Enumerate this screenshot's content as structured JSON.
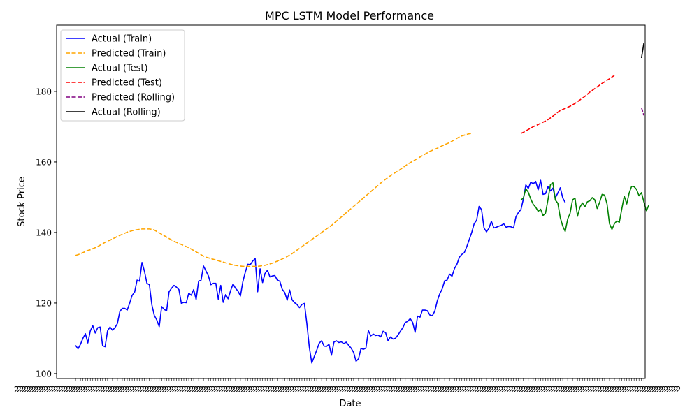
{
  "chart_data": {
    "type": "line",
    "title": "MPC LSTM Model Performance",
    "xlabel": "Date",
    "ylabel": "Stock Price",
    "x_tick_label_text": "2",
    "xlim": [
      -7.7,
      231.5
    ],
    "ylim": [
      98.6,
      198.8
    ],
    "yticks": [
      100,
      120,
      140,
      160,
      180
    ],
    "grid": false,
    "legend_position": "top-left",
    "series": [
      {
        "name": "Actual (Train)",
        "color": "#0000ff",
        "style": "solid",
        "x_start": 0,
        "values": [
          108,
          107,
          108.3,
          110,
          111.3,
          108.7,
          112.1,
          113.6,
          111.5,
          113,
          113.2,
          107.9,
          107.6,
          112.1,
          113.2,
          112.3,
          113,
          114.2,
          117.6,
          118.5,
          118.5,
          118,
          120,
          122.2,
          123.1,
          126.5,
          126.2,
          131.5,
          129,
          125.6,
          125.2,
          119.5,
          116.5,
          115.2,
          113.3,
          119,
          118.2,
          117.8,
          123.2,
          124.2,
          125,
          124.5,
          123.8,
          119.9,
          120.2,
          120.1,
          122.8,
          122.2,
          123.8,
          121,
          126.2,
          126.5,
          130.5,
          129.1,
          127.7,
          125.2,
          125.6,
          125.6,
          121.1,
          125,
          120.2,
          122.4,
          121.2,
          123.5,
          125.4,
          124.2,
          123.4,
          122,
          126.1,
          128.8,
          131,
          130.9,
          131.9,
          132.6,
          123.2,
          129.7,
          125.8,
          128.4,
          129.3,
          127.4,
          127.7,
          127.8,
          126.5,
          126.2,
          123.9,
          123,
          120.8,
          123.7,
          120.9,
          120.1,
          119.6,
          118.7,
          119.6,
          119.9,
          114.2,
          107.5,
          103,
          104.8,
          106.6,
          108.6,
          109.3,
          107.8,
          107.7,
          108.3,
          105.2,
          108.9,
          109.3,
          108.8,
          109,
          108.5,
          108.9,
          108,
          107.2,
          106,
          103.5,
          104.2,
          107.1,
          106.9,
          107.2,
          112.2,
          110.7,
          111.2,
          110.8,
          110.9,
          110.4,
          112,
          111.6,
          109.3,
          110.4,
          109.8,
          110,
          110.9,
          112,
          113,
          114.5,
          114.8,
          115.6,
          114.5,
          111.7,
          116.3,
          116,
          118,
          118,
          117.8,
          116.6,
          116.4,
          117.7,
          120.6,
          122.6,
          124,
          126.3,
          126.5,
          128.2,
          127.6,
          129.8,
          131,
          133,
          133.8,
          134.3,
          136,
          138,
          140,
          142.5,
          143.5,
          147.4,
          146.5,
          141.3,
          140.2,
          141.2,
          143.2,
          141.3,
          141.5,
          141.8,
          142,
          142.5,
          141.5,
          141.7,
          141.6,
          141.3,
          144.5,
          145.7,
          146.5,
          149.5,
          153.5,
          152.5,
          154.3,
          153.8,
          154.5,
          152.1,
          154.8,
          150.8,
          151,
          153,
          151.8,
          152.6,
          149.8,
          151.2,
          152.7,
          149.8,
          148.5
        ]
      },
      {
        "name": "Predicted (Train)",
        "color": "#ffa500",
        "style": "dashed",
        "x_start": 0,
        "values": [
          133.5,
          133.7,
          134,
          134.3,
          134.6,
          134.9,
          135.1,
          135.4,
          135.7,
          136,
          136.4,
          136.8,
          137.2,
          137.6,
          137.8,
          138.2,
          138.5,
          138.9,
          139.2,
          139.5,
          139.8,
          140.1,
          140.3,
          140.5,
          140.7,
          140.8,
          140.9,
          141,
          141,
          141,
          141,
          140.9,
          140.7,
          140.3,
          139.9,
          139.5,
          139.1,
          138.7,
          138.3,
          137.9,
          137.5,
          137.2,
          136.9,
          136.6,
          136.3,
          136,
          135.7,
          135.3,
          134.9,
          134.5,
          134.1,
          133.7,
          133.3,
          133,
          132.8,
          132.6,
          132.4,
          132.2,
          132,
          131.8,
          131.6,
          131.4,
          131.2,
          131,
          130.8,
          130.7,
          130.6,
          130.5,
          130.4,
          130.4,
          130.4,
          130.4,
          130.4,
          130.4,
          130.4,
          130.5,
          130.6,
          130.7,
          130.9,
          131.1,
          131.3,
          131.6,
          131.9,
          132.2,
          132.5,
          132.8,
          133.2,
          133.6,
          134,
          134.5,
          135,
          135.5,
          136,
          136.5,
          137,
          137.5,
          138,
          138.5,
          139,
          139.5,
          140,
          140.5,
          141,
          141.5,
          142,
          142.6,
          143.2,
          143.8,
          144.4,
          145,
          145.6,
          146.2,
          146.8,
          147.4,
          148,
          148.6,
          149.2,
          149.8,
          150.4,
          151,
          151.6,
          152.2,
          152.8,
          153.4,
          154,
          154.6,
          155.1,
          155.6,
          156.1,
          156.6,
          157,
          157.4,
          157.9,
          158.4,
          158.9,
          159.4,
          159.8,
          160.2,
          160.6,
          161,
          161.4,
          161.8,
          162.2,
          162.6,
          163,
          163.3,
          163.6,
          163.9,
          164.2,
          164.6,
          164.9,
          165.2,
          165.5,
          165.9,
          166.3,
          166.7,
          167.1,
          167.4,
          167.6,
          167.8,
          168,
          168.1
        ]
      },
      {
        "name": "Actual (Test)",
        "color": "#008000",
        "style": "solid",
        "x_start": 181,
        "values": [
          149.2,
          149.8,
          152.4,
          151.4,
          149.5,
          148,
          147.2,
          146,
          146.6,
          144.8,
          145.5,
          149.3,
          153.6,
          154.1,
          149.2,
          148.3,
          144.2,
          141.8,
          140.3,
          143.8,
          145.5,
          149.3,
          149.7,
          144.6,
          147.2,
          148.4,
          147.3,
          148.7,
          149,
          149.9,
          149.3,
          146.8,
          148.6,
          150.8,
          150.6,
          148.1,
          142.5,
          140.9,
          142.5,
          143.3,
          142.9,
          146.7,
          150.3,
          148.1,
          151.2,
          153.1,
          153,
          152.2,
          150.4,
          151.3,
          148.6,
          146.2,
          147.8
        ]
      },
      {
        "name": "Predicted (Test)",
        "color": "#ff0000",
        "style": "dashed",
        "x_start": 181,
        "values": [
          168.1,
          168.4,
          168.8,
          169.2,
          169.6,
          170,
          170.3,
          170.6,
          171,
          171.3,
          171.6,
          172,
          172.5,
          173,
          173.6,
          174.1,
          174.6,
          174.9,
          175.2,
          175.5,
          175.8,
          176.2,
          176.6,
          177.1,
          177.6,
          178.1,
          178.6,
          179.2,
          179.8,
          180.3,
          180.8,
          181.3,
          181.8,
          182.3,
          182.7,
          183.2,
          183.6,
          184.1,
          184.5
        ]
      },
      {
        "name": "Predicted (Rolling)",
        "color": "#800080",
        "style": "dashed",
        "x": [
          230,
          231
        ],
        "values": [
          175.4,
          173.2
        ]
      },
      {
        "name": "Actual (Rolling)",
        "color": "#000000",
        "style": "solid",
        "x": [
          230,
          231
        ],
        "values": [
          189.5,
          193.8
        ]
      }
    ]
  }
}
